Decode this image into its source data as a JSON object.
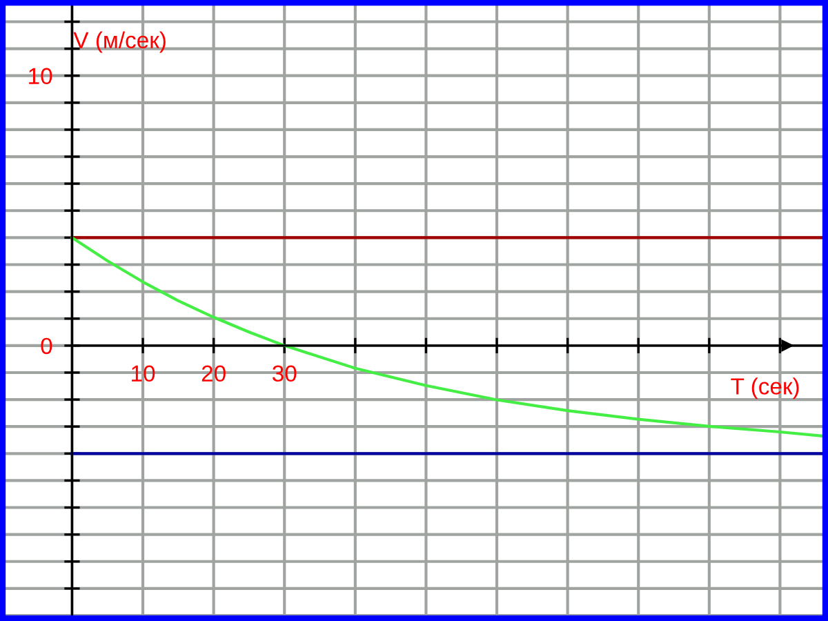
{
  "chart_data": {
    "type": "line",
    "xlabel": "T (сек)",
    "ylabel": "V (м/сек)",
    "series": [
      {
        "color": "#a00000",
        "x": [
          0,
          106
        ],
        "values": [
          4,
          4
        ]
      },
      {
        "color": "#0000a0",
        "x": [
          0,
          106
        ],
        "values": [
          -4,
          -4
        ]
      },
      {
        "color": "#44ee44",
        "x": [
          0,
          5,
          10,
          15,
          20,
          25,
          30,
          40,
          50,
          60,
          70,
          80,
          90,
          100,
          106
        ],
        "values": [
          4,
          3.14,
          2.36,
          1.66,
          1.05,
          0.5,
          0,
          -0.84,
          -1.48,
          -2.01,
          -2.41,
          -2.73,
          -2.99,
          -3.2,
          -3.35
        ]
      }
    ],
    "xlim": [
      -9.4,
      106
    ],
    "ylim": [
      -10,
      12.6
    ],
    "xticks": [
      10,
      20,
      30,
      {
        "value": 40,
        "label": null
      },
      {
        "value": 50,
        "label": null
      },
      {
        "value": 60,
        "label": null
      },
      {
        "value": 70,
        "label": null
      },
      {
        "value": 80,
        "label": null
      },
      {
        "value": 90,
        "label": null
      },
      {
        "value": 100,
        "label": null
      }
    ],
    "yticks": [
      {
        "value": -9,
        "label": null
      },
      {
        "value": -8,
        "label": null
      },
      {
        "value": -7,
        "label": null
      },
      {
        "value": -6,
        "label": null
      },
      {
        "value": -5,
        "label": null
      },
      {
        "value": -4,
        "label": null
      },
      {
        "value": -3,
        "label": null
      },
      {
        "value": -2,
        "label": null
      },
      {
        "value": -1,
        "label": null
      },
      0,
      {
        "value": 1,
        "label": null
      },
      {
        "value": 2,
        "label": null
      },
      {
        "value": 3,
        "label": null
      },
      {
        "value": 4,
        "label": null
      },
      {
        "value": 5,
        "label": null
      },
      {
        "value": 6,
        "label": null
      },
      {
        "value": 7,
        "label": null
      },
      {
        "value": 8,
        "label": null
      },
      {
        "value": 9,
        "label": null
      },
      10,
      {
        "value": 11,
        "label": null
      },
      {
        "value": 12,
        "label": null
      }
    ],
    "grid": true,
    "marker": "none",
    "line_style": "solid",
    "legend": false
  }
}
